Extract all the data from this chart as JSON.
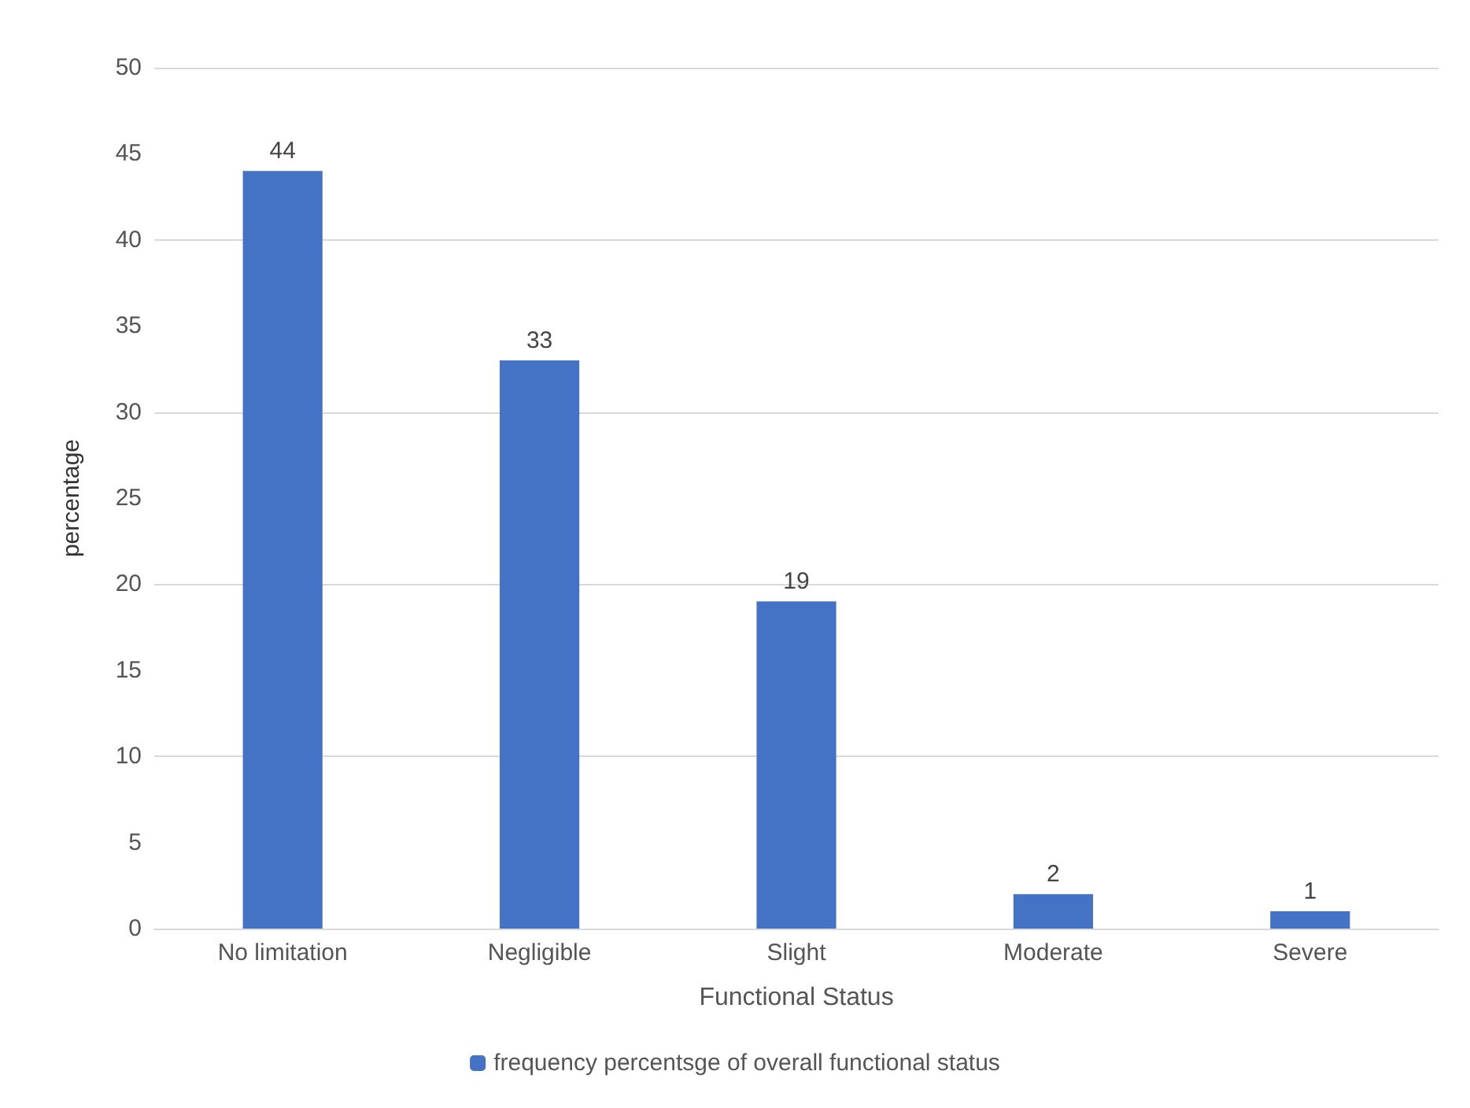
{
  "chart_data": {
    "type": "bar",
    "xlabel": "Functional Status",
    "ylabel": "percentage",
    "categories": [
      "No limitation",
      "Negligible",
      "Slight",
      "Moderate",
      "Severe"
    ],
    "series": [
      {
        "name": "frequency percentsge of overall functional status",
        "color": "#4472c4",
        "values": [
          44,
          33,
          19,
          2,
          1
        ]
      }
    ],
    "ylim": [
      0,
      50
    ],
    "yticks": [
      0,
      5,
      10,
      15,
      20,
      25,
      30,
      35,
      40,
      45,
      50
    ],
    "grid": "y",
    "legend": "bottom",
    "data_labels": true
  }
}
